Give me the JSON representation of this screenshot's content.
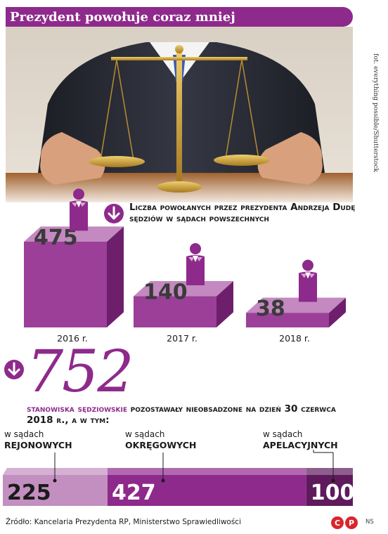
{
  "header": {
    "title": "Prezydent powołuje coraz mniej"
  },
  "photo": {
    "credit": "fot. everything possible/Shutterstock"
  },
  "chart_data": [
    {
      "type": "bar",
      "title": "Liczba powołanych przez prezydenta Andrzeja Dudę sędziów w sądach powszechnych",
      "categories": [
        "2016 r.",
        "2017 r.",
        "2018 r."
      ],
      "values": [
        475,
        140,
        38
      ],
      "ylim": [
        0,
        475
      ]
    },
    {
      "type": "bar",
      "title": "",
      "total": "752",
      "categories": [
        "rejonowych",
        "okręgowych",
        "apelacyjnych"
      ],
      "values": [
        225,
        427,
        100
      ]
    }
  ],
  "stats": {
    "highlight": "stanowiska sędziowskie",
    "rest": " pozostawały nieobsadzone na dzień 30 czerwca 2018 r., a w tym:"
  },
  "courts": [
    {
      "prefix": "w sądach",
      "name": "REJONOWYCH"
    },
    {
      "prefix": "w sądach",
      "name": "OKRĘGOWYCH"
    },
    {
      "prefix": "w sądach",
      "name": "APELACYJNYCH"
    }
  ],
  "footer": {
    "source": "Źródło: Kancelaria Prezydenta RP, Ministerstwo Sprawiedliwości",
    "logo_text": "CP",
    "author": "NS"
  },
  "colors": {
    "accent": "#8e2a8c",
    "box_top": "#c389c0",
    "box_front": "#9b3f98",
    "box_side": "#6e1f6c",
    "seg_light": "#c28fc0",
    "seg_mid": "#8e2a8c",
    "seg_dark": "#5e1a5c"
  }
}
